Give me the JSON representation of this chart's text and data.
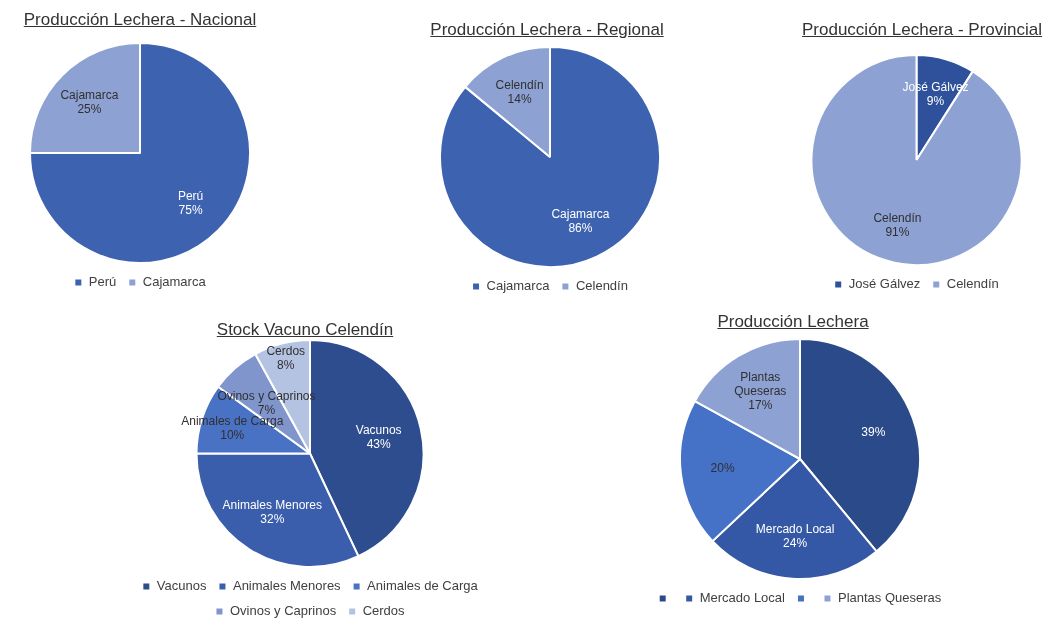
{
  "chart_data": [
    {
      "type": "pie",
      "title": "Producción Lechera - Nacional",
      "categories": [
        "Perú",
        "Cajamarca"
      ],
      "values": [
        75,
        25
      ],
      "value_labels": [
        "75%",
        "25%"
      ],
      "colors": [
        "#3d62b0",
        "#8da1d3"
      ],
      "legend": "bottom"
    },
    {
      "type": "pie",
      "title": "Producción Lechera - Regional",
      "categories": [
        "Cajamarca",
        "Celendín"
      ],
      "values": [
        86,
        14
      ],
      "value_labels": [
        "86%",
        "14%"
      ],
      "colors": [
        "#3d62b0",
        "#8da1d3"
      ],
      "legend": "bottom"
    },
    {
      "type": "pie",
      "title": "Producción Lechera - Provincial",
      "categories": [
        "José Gálvez",
        "Celendín"
      ],
      "values": [
        9,
        91
      ],
      "value_labels": [
        "9%",
        "91%"
      ],
      "colors": [
        "#2f519c",
        "#8da1d3"
      ],
      "legend": "bottom"
    },
    {
      "type": "pie",
      "title": "Stock Vacuno Celendín",
      "categories": [
        "Vacunos",
        "Animales Menores",
        "Animales de Carga",
        "Ovinos y Caprinos",
        "Cerdos"
      ],
      "values": [
        43,
        32,
        10,
        7,
        8
      ],
      "value_labels": [
        "43%",
        "32%",
        "10%",
        "7%",
        "8%"
      ],
      "colors": [
        "#2d4d8f",
        "#3a5eac",
        "#4a72c4",
        "#7f95cc",
        "#b5c3e3"
      ],
      "legend": "bottom"
    },
    {
      "type": "pie",
      "title": "Producción Lechera",
      "categories": [
        null,
        "Mercado Local",
        null,
        "Plantas Queseras"
      ],
      "values": [
        39,
        24,
        20,
        17
      ],
      "value_labels": [
        "39%",
        "24%",
        "20%",
        "17%"
      ],
      "colors": [
        "#2b4a8a",
        "#3558a6",
        "#4571c6",
        "#8da1d3"
      ],
      "legend": "bottom"
    }
  ]
}
